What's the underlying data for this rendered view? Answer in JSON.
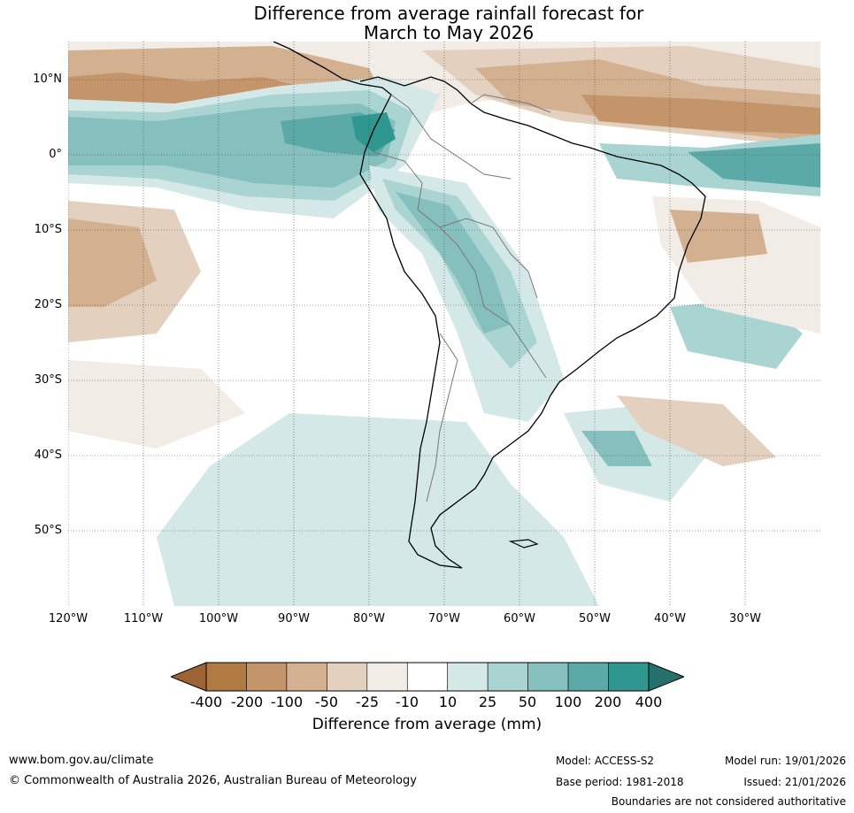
{
  "title": {
    "line1": "Difference from average rainfall forecast for",
    "line2": "March to May 2026"
  },
  "lat_labels": [
    "10°N",
    "0°",
    "10°S",
    "20°S",
    "30°S",
    "40°S",
    "50°S"
  ],
  "lon_labels": [
    "120°W",
    "110°W",
    "100°W",
    "90°W",
    "80°W",
    "70°W",
    "60°W",
    "50°W",
    "40°W",
    "30°W"
  ],
  "colorbar": {
    "ticks": [
      "-400",
      "-200",
      "-100",
      "-50",
      "-25",
      "-10",
      "10",
      "25",
      "50",
      "100",
      "200",
      "400"
    ],
    "colors": {
      "below_min": "#9c6435",
      "bins": [
        "#b07a43",
        "#c4946a",
        "#d3b090",
        "#e3d0be",
        "#f1ece6",
        "#ffffff",
        "#d4e9e7",
        "#a9d4d2",
        "#85c0be",
        "#5caaa8",
        "#2f9690"
      ],
      "above_max": "#24716c"
    },
    "label": "Difference from average (mm)"
  },
  "footer": {
    "url": "www.bom.gov.au/climate",
    "copyright": "© Commonwealth of Australia 2026, Australian Bureau of Meteorology",
    "model": "Model: ACCESS-S2",
    "base_period": "Base period: 1981-2018",
    "model_run": "Model run: 19/01/2026",
    "issued": "Issued: 21/01/2026",
    "disclaimer": "Boundaries are not considered authoritative"
  }
}
